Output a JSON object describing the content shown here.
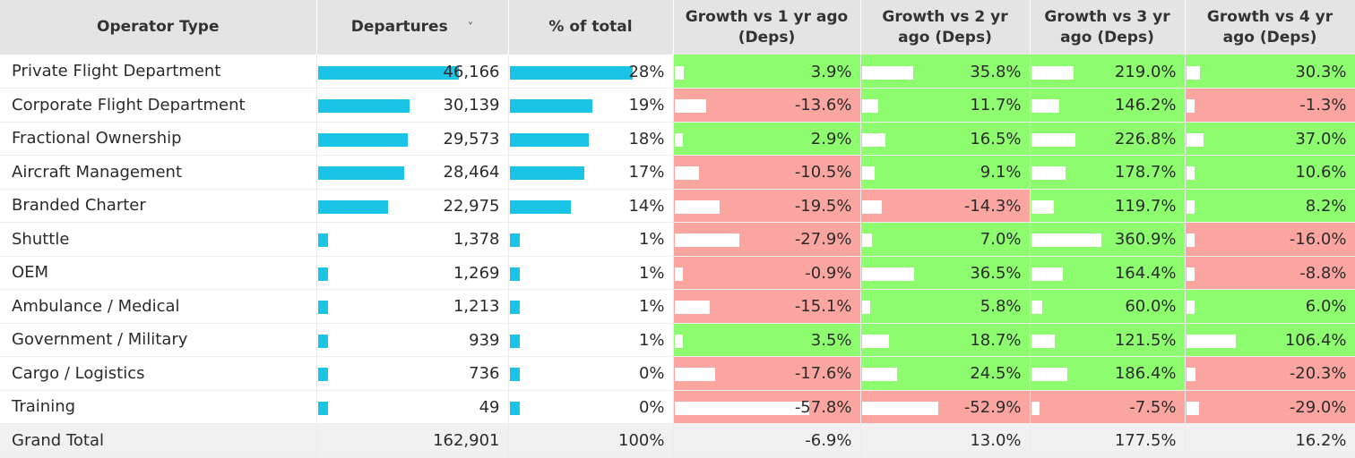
{
  "headers": {
    "operator_type": "Operator Type",
    "departures": "Departures",
    "sort_icon": "˅",
    "pct_total": "% of total",
    "g1": "Growth vs 1 yr ago (Deps)",
    "g2": "Growth vs 2 yr ago (Deps)",
    "g3": "Growth vs 3 yr ago (Deps)",
    "g4": "Growth vs 4 yr ago (Deps)"
  },
  "colors": {
    "bar": "#19c4e6",
    "positive": "#8efc6f",
    "negative": "#fba5a1",
    "header": "#e4e4e4"
  },
  "chart_data": {
    "type": "table",
    "columns": [
      "Operator Type",
      "Departures",
      "% of total",
      "Growth vs 1 yr ago (Deps)",
      "Growth vs 2 yr ago (Deps)",
      "Growth vs 3 yr ago (Deps)",
      "Growth vs 4 yr ago (Deps)"
    ],
    "rows": [
      {
        "name": "Private Flight Department",
        "departures": 46166,
        "departures_label": "46,166",
        "pct": 28,
        "pct_label": "28%",
        "g1": 3.9,
        "g1_label": "3.9%",
        "g2": 35.8,
        "g2_label": "35.8%",
        "g3": 219.0,
        "g3_label": "219.0%",
        "g4": 30.3,
        "g4_label": "30.3%"
      },
      {
        "name": "Corporate Flight Department",
        "departures": 30139,
        "departures_label": "30,139",
        "pct": 19,
        "pct_label": "19%",
        "g1": -13.6,
        "g1_label": "-13.6%",
        "g2": 11.7,
        "g2_label": "11.7%",
        "g3": 146.2,
        "g3_label": "146.2%",
        "g4": -1.3,
        "g4_label": "-1.3%"
      },
      {
        "name": "Fractional Ownership",
        "departures": 29573,
        "departures_label": "29,573",
        "pct": 18,
        "pct_label": "18%",
        "g1": 2.9,
        "g1_label": "2.9%",
        "g2": 16.5,
        "g2_label": "16.5%",
        "g3": 226.8,
        "g3_label": "226.8%",
        "g4": 37.0,
        "g4_label": "37.0%"
      },
      {
        "name": "Aircraft Management",
        "departures": 28464,
        "departures_label": "28,464",
        "pct": 17,
        "pct_label": "17%",
        "g1": -10.5,
        "g1_label": "-10.5%",
        "g2": 9.1,
        "g2_label": "9.1%",
        "g3": 178.7,
        "g3_label": "178.7%",
        "g4": 10.6,
        "g4_label": "10.6%"
      },
      {
        "name": "Branded Charter",
        "departures": 22975,
        "departures_label": "22,975",
        "pct": 14,
        "pct_label": "14%",
        "g1": -19.5,
        "g1_label": "-19.5%",
        "g2": -14.3,
        "g2_label": "-14.3%",
        "g3": 119.7,
        "g3_label": "119.7%",
        "g4": 8.2,
        "g4_label": "8.2%"
      },
      {
        "name": "Shuttle",
        "departures": 1378,
        "departures_label": "1,378",
        "pct": 1,
        "pct_label": "1%",
        "g1": -27.9,
        "g1_label": "-27.9%",
        "g2": 7.0,
        "g2_label": "7.0%",
        "g3": 360.9,
        "g3_label": "360.9%",
        "g4": -16.0,
        "g4_label": "-16.0%"
      },
      {
        "name": "OEM",
        "departures": 1269,
        "departures_label": "1,269",
        "pct": 1,
        "pct_label": "1%",
        "g1": -0.9,
        "g1_label": "-0.9%",
        "g2": 36.5,
        "g2_label": "36.5%",
        "g3": 164.4,
        "g3_label": "164.4%",
        "g4": -8.8,
        "g4_label": "-8.8%"
      },
      {
        "name": "Ambulance / Medical",
        "departures": 1213,
        "departures_label": "1,213",
        "pct": 1,
        "pct_label": "1%",
        "g1": -15.1,
        "g1_label": "-15.1%",
        "g2": 5.8,
        "g2_label": "5.8%",
        "g3": 60.0,
        "g3_label": "60.0%",
        "g4": 6.0,
        "g4_label": "6.0%"
      },
      {
        "name": "Government / Military",
        "departures": 939,
        "departures_label": "939",
        "pct": 1,
        "pct_label": "1%",
        "g1": 3.5,
        "g1_label": "3.5%",
        "g2": 18.7,
        "g2_label": "18.7%",
        "g3": 121.5,
        "g3_label": "121.5%",
        "g4": 106.4,
        "g4_label": "106.4%"
      },
      {
        "name": "Cargo / Logistics",
        "departures": 736,
        "departures_label": "736",
        "pct": 0,
        "pct_label": "0%",
        "g1": -17.6,
        "g1_label": "-17.6%",
        "g2": 24.5,
        "g2_label": "24.5%",
        "g3": 186.4,
        "g3_label": "186.4%",
        "g4": -20.3,
        "g4_label": "-20.3%"
      },
      {
        "name": "Training",
        "departures": 49,
        "departures_label": "49",
        "pct": 0,
        "pct_label": "0%",
        "g1": -57.8,
        "g1_label": "-57.8%",
        "g2": -52.9,
        "g2_label": "-52.9%",
        "g3": -7.5,
        "g3_label": "-7.5%",
        "g4": -29.0,
        "g4_label": "-29.0%"
      }
    ],
    "total": {
      "name": "Grand Total",
      "departures_label": "162,901",
      "pct_label": "100%",
      "g1_label": "-6.9%",
      "g2_label": "13.0%",
      "g3_label": "177.5%",
      "g4_label": "16.2%"
    }
  }
}
